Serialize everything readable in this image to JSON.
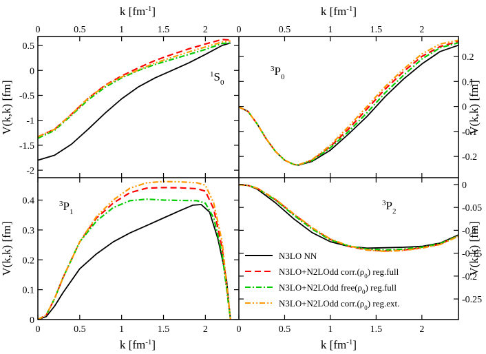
{
  "chart_data": {
    "type": "line",
    "x_axis_label": "k [fm⁻¹]",
    "y_axis_label": "V(k,k) [fm]",
    "xlim": [
      0,
      2.4
    ],
    "x_ticks": [
      0,
      0.5,
      1,
      1.5,
      2
    ],
    "x_tick_labels": [
      "0",
      "0.5",
      "1",
      "1.5",
      "2"
    ],
    "legend": {
      "placement": "lower-right of bottom-right panel",
      "entries": [
        {
          "label": "N3LO NN",
          "color": "#000000",
          "dash": "solid"
        },
        {
          "label": "N3LO+N2LOdd corr.(ρ₀) reg.full",
          "color": "#ff0000",
          "dash": "dashed"
        },
        {
          "label": "N3LO+N2LOdd free(ρ₀) reg.full",
          "color": "#00cc00",
          "dash": "dashdot"
        },
        {
          "label": "N3LO+N2LOdd corr.(ρ₀) reg.ext.",
          "color": "#ff9900",
          "dash": "dashdotdot"
        }
      ]
    },
    "panels": [
      {
        "id": "1S0",
        "label_main": "S",
        "label_sup": "1",
        "label_sub": "0",
        "ylim": [
          -2.15,
          0.68
        ],
        "y_ticks": [
          -2,
          -1.5,
          -1,
          -0.5,
          0,
          0.5
        ],
        "y_tick_labels": [
          "-2",
          "-1.5",
          "-1",
          "-0.5",
          "0",
          "0.5"
        ],
        "series": [
          {
            "x": [
              0,
              0.2,
              0.4,
              0.6,
              0.8,
              1.0,
              1.2,
              1.4,
              1.6,
              1.8,
              2.0,
              2.2,
              2.3
            ],
            "y": [
              -1.8,
              -1.7,
              -1.48,
              -1.18,
              -0.86,
              -0.57,
              -0.33,
              -0.15,
              0.0,
              0.15,
              0.32,
              0.5,
              0.55
            ]
          },
          {
            "x": [
              0,
              0.2,
              0.4,
              0.6,
              0.8,
              1.0,
              1.2,
              1.4,
              1.6,
              1.8,
              2.0,
              2.2,
              2.3
            ],
            "y": [
              -1.33,
              -1.18,
              -0.88,
              -0.56,
              -0.3,
              -0.11,
              0.05,
              0.2,
              0.32,
              0.43,
              0.53,
              0.62,
              0.61
            ]
          },
          {
            "x": [
              0,
              0.2,
              0.4,
              0.6,
              0.8,
              1.0,
              1.2,
              1.4,
              1.6,
              1.8,
              2.0,
              2.2,
              2.3
            ],
            "y": [
              -1.36,
              -1.2,
              -0.9,
              -0.59,
              -0.34,
              -0.15,
              0.0,
              0.12,
              0.22,
              0.32,
              0.42,
              0.54,
              0.55
            ]
          },
          {
            "x": [
              0,
              0.2,
              0.4,
              0.6,
              0.8,
              1.0,
              1.2,
              1.4,
              1.6,
              1.8,
              2.0,
              2.2,
              2.3
            ],
            "y": [
              -1.33,
              -1.18,
              -0.88,
              -0.56,
              -0.31,
              -0.13,
              0.01,
              0.15,
              0.26,
              0.37,
              0.47,
              0.57,
              0.59
            ]
          }
        ]
      },
      {
        "id": "3P0",
        "label_main": "P",
        "label_sup": "3",
        "label_sub": "0",
        "ylim": [
          -0.285,
          0.28
        ],
        "y_ticks": [
          -0.2,
          -0.1,
          0,
          0.1,
          0.2
        ],
        "y_tick_labels": [
          "-0.2",
          "-0.1",
          "0",
          "0.1",
          "0.2"
        ],
        "series": [
          {
            "x": [
              0,
              0.1,
              0.2,
              0.3,
              0.4,
              0.5,
              0.6,
              0.65,
              0.8,
              1.0,
              1.2,
              1.4,
              1.6,
              1.8,
              2.0,
              2.2,
              2.4
            ],
            "y": [
              -0.002,
              -0.02,
              -0.07,
              -0.13,
              -0.18,
              -0.215,
              -0.232,
              -0.235,
              -0.22,
              -0.175,
              -0.11,
              -0.04,
              0.04,
              0.11,
              0.17,
              0.22,
              0.245
            ]
          },
          {
            "x": [
              0,
              0.1,
              0.2,
              0.3,
              0.4,
              0.5,
              0.6,
              0.65,
              0.8,
              1.0,
              1.2,
              1.4,
              1.6,
              1.8,
              2.0,
              2.2,
              2.4
            ],
            "y": [
              -0.002,
              -0.02,
              -0.07,
              -0.13,
              -0.18,
              -0.215,
              -0.232,
              -0.234,
              -0.215,
              -0.16,
              -0.09,
              -0.01,
              0.07,
              0.14,
              0.2,
              0.24,
              0.26
            ]
          },
          {
            "x": [
              0,
              0.1,
              0.2,
              0.3,
              0.4,
              0.5,
              0.6,
              0.65,
              0.8,
              1.0,
              1.2,
              1.4,
              1.6,
              1.8,
              2.0,
              2.2,
              2.4
            ],
            "y": [
              -0.002,
              -0.02,
              -0.07,
              -0.13,
              -0.18,
              -0.215,
              -0.232,
              -0.234,
              -0.217,
              -0.165,
              -0.1,
              -0.025,
              0.055,
              0.125,
              0.19,
              0.235,
              0.255
            ]
          },
          {
            "x": [
              0,
              0.1,
              0.2,
              0.3,
              0.4,
              0.5,
              0.6,
              0.65,
              0.8,
              1.0,
              1.2,
              1.4,
              1.6,
              1.8,
              2.0,
              2.2,
              2.4
            ],
            "y": [
              -0.002,
              -0.02,
              -0.07,
              -0.13,
              -0.18,
              -0.215,
              -0.232,
              -0.234,
              -0.213,
              -0.155,
              -0.08,
              0.0,
              0.08,
              0.15,
              0.21,
              0.25,
              0.265
            ]
          }
        ]
      },
      {
        "id": "3P1",
        "label_main": "P",
        "label_sup": "3",
        "label_sub": "1",
        "ylim": [
          0,
          0.475
        ],
        "y_ticks": [
          0,
          0.1,
          0.2,
          0.3,
          0.4
        ],
        "y_tick_labels": [
          "0",
          "0.1",
          "0.2",
          "0.3",
          "0.4"
        ],
        "series": [
          {
            "x": [
              0,
              0.1,
              0.2,
              0.3,
              0.5,
              0.7,
              0.9,
              1.1,
              1.3,
              1.5,
              1.7,
              1.85,
              1.95,
              2.05,
              2.15,
              2.25,
              2.3
            ],
            "y": [
              0,
              0.01,
              0.045,
              0.09,
              0.17,
              0.22,
              0.26,
              0.29,
              0.315,
              0.34,
              0.365,
              0.383,
              0.385,
              0.36,
              0.27,
              0.14,
              0
            ]
          },
          {
            "x": [
              0,
              0.1,
              0.2,
              0.3,
              0.5,
              0.7,
              0.9,
              1.1,
              1.3,
              1.5,
              1.7,
              1.9,
              2.0,
              2.1,
              2.2,
              2.3
            ],
            "y": [
              0,
              0.015,
              0.07,
              0.14,
              0.26,
              0.34,
              0.39,
              0.425,
              0.44,
              0.442,
              0.441,
              0.438,
              0.43,
              0.37,
              0.24,
              0
            ]
          },
          {
            "x": [
              0,
              0.1,
              0.2,
              0.3,
              0.5,
              0.7,
              0.9,
              1.1,
              1.3,
              1.5,
              1.7,
              1.9,
              2.0,
              2.1,
              2.2,
              2.3
            ],
            "y": [
              0,
              0.015,
              0.07,
              0.14,
              0.26,
              0.33,
              0.375,
              0.398,
              0.403,
              0.4,
              0.399,
              0.398,
              0.39,
              0.34,
              0.22,
              0
            ]
          },
          {
            "x": [
              0,
              0.1,
              0.2,
              0.3,
              0.5,
              0.7,
              0.9,
              1.1,
              1.3,
              1.5,
              1.7,
              1.9,
              2.0,
              2.1,
              2.2,
              2.3
            ],
            "y": [
              0,
              0.015,
              0.07,
              0.14,
              0.26,
              0.345,
              0.4,
              0.44,
              0.458,
              0.462,
              0.461,
              0.458,
              0.45,
              0.39,
              0.26,
              0
            ]
          }
        ]
      },
      {
        "id": "3P2",
        "label_main": "P",
        "label_sup": "3",
        "label_sub": "2",
        "ylim": [
          -0.295,
          0.015
        ],
        "y_ticks": [
          -0.25,
          -0.2,
          -0.15,
          -0.1,
          -0.05,
          0
        ],
        "y_tick_labels": [
          "-0.25",
          "-0.2",
          "-0.15",
          "-0.1",
          "-0.05",
          "0"
        ],
        "series": [
          {
            "x": [
              0,
              0.1,
              0.2,
              0.4,
              0.6,
              0.8,
              1.0,
              1.2,
              1.4,
              1.6,
              1.8,
              2.0,
              2.2,
              2.4
            ],
            "y": [
              0,
              -0.002,
              -0.01,
              -0.04,
              -0.075,
              -0.105,
              -0.125,
              -0.135,
              -0.139,
              -0.138,
              -0.137,
              -0.135,
              -0.128,
              -0.11
            ]
          },
          {
            "x": [
              0,
              0.1,
              0.2,
              0.4,
              0.6,
              0.8,
              1.0,
              1.2,
              1.4,
              1.6,
              1.8,
              2.0,
              2.2,
              2.4
            ],
            "y": [
              0,
              -0.002,
              -0.008,
              -0.033,
              -0.065,
              -0.095,
              -0.12,
              -0.135,
              -0.143,
              -0.145,
              -0.143,
              -0.138,
              -0.13,
              -0.112
            ]
          },
          {
            "x": [
              0,
              0.1,
              0.2,
              0.4,
              0.6,
              0.8,
              1.0,
              1.2,
              1.4,
              1.6,
              1.8,
              2.0,
              2.2,
              2.4
            ],
            "y": [
              0,
              -0.002,
              -0.008,
              -0.034,
              -0.067,
              -0.097,
              -0.121,
              -0.134,
              -0.141,
              -0.143,
              -0.141,
              -0.137,
              -0.129,
              -0.112
            ]
          },
          {
            "x": [
              0,
              0.1,
              0.2,
              0.4,
              0.6,
              0.8,
              1.0,
              1.2,
              1.4,
              1.6,
              1.8,
              2.0,
              2.2,
              2.4
            ],
            "y": [
              0,
              -0.002,
              -0.008,
              -0.032,
              -0.064,
              -0.094,
              -0.119,
              -0.134,
              -0.143,
              -0.146,
              -0.144,
              -0.139,
              -0.131,
              -0.113
            ]
          }
        ]
      }
    ]
  }
}
